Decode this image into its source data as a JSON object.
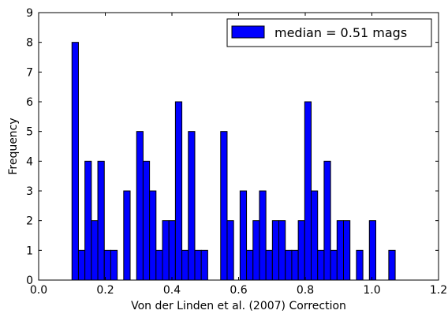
{
  "chart_data": {
    "type": "bar",
    "subtype": "histogram",
    "xlabel": "Von der Linden et al. (2007) Correction",
    "ylabel": "Frequency",
    "xlim": [
      0.0,
      1.2
    ],
    "ylim": [
      0,
      9
    ],
    "xticks": [
      "0.0",
      "0.2",
      "0.4",
      "0.6",
      "0.8",
      "1.0",
      "1.2"
    ],
    "yticks": [
      "0",
      "1",
      "2",
      "3",
      "4",
      "5",
      "6",
      "7",
      "8",
      "9"
    ],
    "bin_start": 0.1,
    "bin_width": 0.0194,
    "counts": [
      8,
      1,
      4,
      2,
      4,
      1,
      1,
      0,
      3,
      0,
      5,
      4,
      3,
      1,
      2,
      2,
      6,
      1,
      5,
      1,
      1,
      0,
      0,
      5,
      2,
      0,
      3,
      1,
      2,
      3,
      1,
      2,
      2,
      1,
      1,
      2,
      6,
      3,
      1,
      4,
      1,
      2,
      2,
      0,
      1,
      0,
      2,
      0,
      0,
      1
    ],
    "series": [
      {
        "name": "median = 0.51 mags",
        "color": "#0000ff"
      }
    ],
    "legend_position": "top-right",
    "grid": false,
    "bar_color": "#0000ff",
    "edge_color": "#000000"
  }
}
